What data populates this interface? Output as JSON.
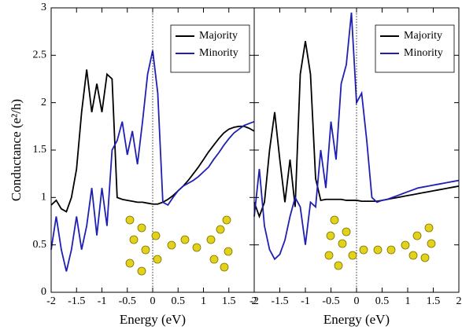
{
  "chart_data": [
    {
      "type": "line",
      "y_label": "Conductance (e²/h)",
      "x_label": "Energy (eV)",
      "xlim": [
        -2,
        2
      ],
      "ylim": [
        0,
        3
      ],
      "xticks": [
        -2,
        -1.5,
        -1,
        -0.5,
        0,
        0.5,
        1,
        1.5,
        2
      ],
      "yticks": [
        0,
        0.5,
        1,
        1.5,
        2,
        2.5,
        3
      ],
      "vline": 0,
      "legend": "upper right",
      "x": [
        -2,
        -1.9,
        -1.8,
        -1.7,
        -1.6,
        -1.5,
        -1.4,
        -1.3,
        -1.2,
        -1.1,
        -1,
        -0.9,
        -0.8,
        -0.7,
        -0.6,
        -0.5,
        -0.4,
        -0.3,
        -0.2,
        -0.1,
        0,
        0.1,
        0.2,
        0.3,
        0.4,
        0.5,
        0.6,
        0.7,
        0.8,
        0.9,
        1,
        1.1,
        1.2,
        1.3,
        1.4,
        1.5,
        1.6,
        1.7,
        1.8,
        1.9,
        2
      ],
      "series": [
        {
          "name": "Majority",
          "color": "#000000",
          "values": [
            0.92,
            0.97,
            0.88,
            0.85,
            1.0,
            1.3,
            1.9,
            2.35,
            1.9,
            2.2,
            1.9,
            2.3,
            2.25,
            1.0,
            0.98,
            0.97,
            0.96,
            0.95,
            0.95,
            0.94,
            0.93,
            0.93,
            0.95,
            0.98,
            1.02,
            1.07,
            1.12,
            1.18,
            1.25,
            1.32,
            1.4,
            1.48,
            1.55,
            1.62,
            1.68,
            1.72,
            1.74,
            1.75,
            1.75,
            1.73,
            1.7
          ]
        },
        {
          "name": "Minority",
          "color": "#1f1fb4",
          "values": [
            0.45,
            0.8,
            0.45,
            0.22,
            0.45,
            0.8,
            0.45,
            0.7,
            1.1,
            0.6,
            1.1,
            0.7,
            1.5,
            1.6,
            1.8,
            1.45,
            1.7,
            1.35,
            1.8,
            2.3,
            2.55,
            2.1,
            0.95,
            0.92,
            1.0,
            1.07,
            1.12,
            1.15,
            1.18,
            1.22,
            1.27,
            1.32,
            1.4,
            1.47,
            1.55,
            1.62,
            1.68,
            1.72,
            1.76,
            1.78,
            1.8
          ]
        }
      ]
    },
    {
      "type": "line",
      "x_label": "Energy (eV)",
      "xlim": [
        -2,
        2
      ],
      "ylim": [
        0,
        3
      ],
      "xticks": [
        -2,
        -1.5,
        -1,
        -0.5,
        0,
        0.5,
        1,
        1.5,
        2
      ],
      "yticks": [
        0,
        0.5,
        1,
        1.5,
        2,
        2.5,
        3
      ],
      "vline": 0,
      "legend": "upper right",
      "x": [
        -2,
        -1.9,
        -1.8,
        -1.7,
        -1.6,
        -1.5,
        -1.4,
        -1.3,
        -1.2,
        -1.1,
        -1,
        -0.9,
        -0.8,
        -0.7,
        -0.6,
        -0.5,
        -0.4,
        -0.3,
        -0.2,
        -0.1,
        0,
        0.1,
        0.2,
        0.3,
        0.4,
        0.5,
        0.6,
        0.7,
        0.8,
        0.9,
        1,
        1.1,
        1.2,
        1.3,
        1.4,
        1.5,
        1.6,
        1.7,
        1.8,
        1.9,
        2
      ],
      "series": [
        {
          "name": "Majority",
          "color": "#000000",
          "values": [
            0.95,
            0.8,
            0.95,
            1.5,
            1.9,
            1.4,
            0.95,
            1.4,
            0.9,
            2.3,
            2.65,
            2.3,
            1.2,
            0.97,
            0.98,
            0.98,
            0.98,
            0.98,
            0.97,
            0.97,
            0.97,
            0.96,
            0.96,
            0.96,
            0.96,
            0.97,
            0.98,
            0.99,
            1.0,
            1.01,
            1.02,
            1.03,
            1.04,
            1.05,
            1.06,
            1.07,
            1.08,
            1.09,
            1.1,
            1.11,
            1.12
          ]
        },
        {
          "name": "Minority",
          "color": "#1f1fb4",
          "values": [
            0.8,
            1.3,
            0.7,
            0.45,
            0.35,
            0.4,
            0.55,
            0.8,
            1.0,
            0.9,
            0.5,
            0.95,
            0.9,
            1.5,
            1.1,
            1.8,
            1.4,
            2.2,
            2.4,
            2.95,
            2.0,
            2.1,
            1.6,
            1.0,
            0.95,
            0.97,
            0.98,
            1.0,
            1.02,
            1.04,
            1.06,
            1.08,
            1.1,
            1.11,
            1.12,
            1.13,
            1.14,
            1.15,
            1.16,
            1.17,
            1.18
          ]
        }
      ]
    }
  ]
}
